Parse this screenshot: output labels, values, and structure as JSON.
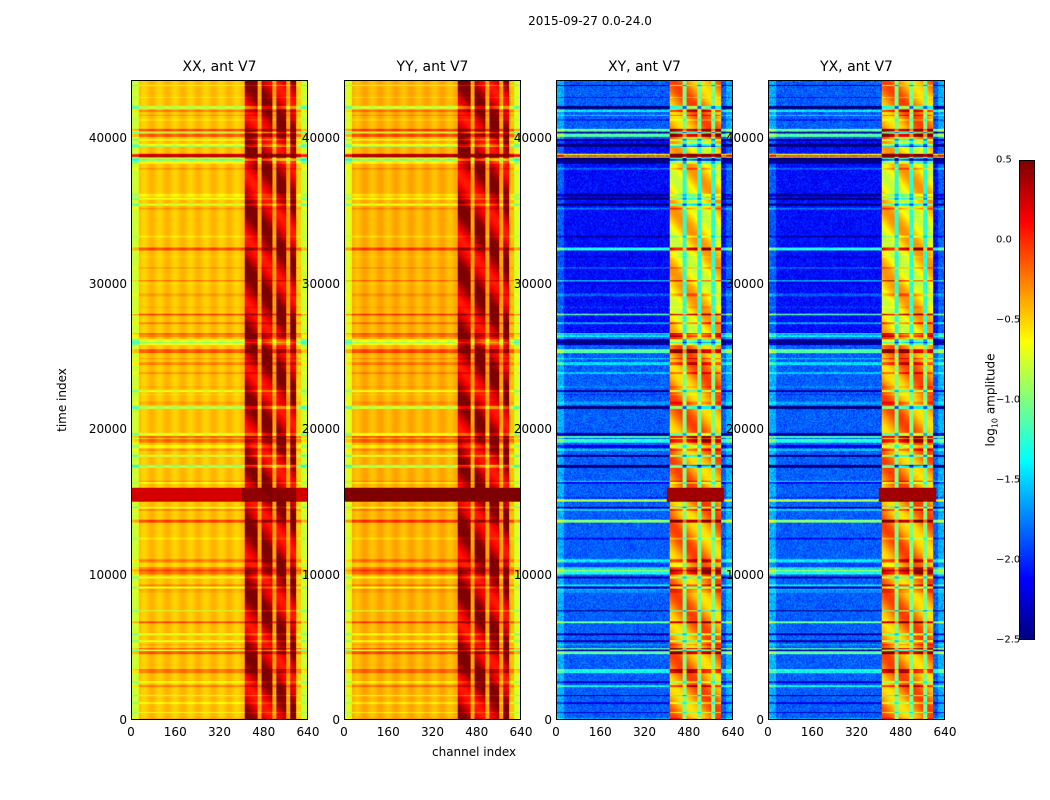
{
  "suptitle": "2015-09-27 0.0-24.0",
  "chart_data": {
    "type": "heatmap",
    "xlabel": "channel index",
    "ylabel": "time index",
    "xlim": [
      0,
      640
    ],
    "ylim": [
      0,
      44000
    ],
    "xticks": [
      "0",
      "160",
      "320",
      "480",
      "640"
    ],
    "yticks": [
      "0",
      "10000",
      "20000",
      "30000",
      "40000"
    ],
    "panels": [
      {
        "title": "XX, ant V7",
        "base": -0.45,
        "edge_base": -0.8,
        "active_band_level": 0.3,
        "flare_rows": [
          15000,
          16000
        ],
        "flare_level": 0.45,
        "flare_full_width": false
      },
      {
        "title": "YY, ant V7",
        "base": -0.4,
        "edge_base": -0.75,
        "active_band_level": 0.3,
        "flare_rows": [
          15000,
          16000
        ],
        "flare_level": 0.5,
        "flare_full_width": true
      },
      {
        "title": "XY, ant V7",
        "base": -1.85,
        "edge_base": -1.6,
        "active_band_level": -0.3,
        "flare_rows": [
          15000,
          16000
        ],
        "flare_level": 0.4,
        "flare_full_width": false
      },
      {
        "title": "YX, ant V7",
        "base": -1.85,
        "edge_base": -1.6,
        "active_band_level": -0.3,
        "flare_rows": [
          15000,
          16000
        ],
        "flare_level": 0.4,
        "flare_full_width": false
      }
    ],
    "active_channels": [
      410,
      600
    ],
    "gap_channels": [
      465,
      520,
      570
    ],
    "colorbar": {
      "label": "log10 amplitude",
      "label_main": "log",
      "label_sub": "10",
      "label_rest": " amplitude",
      "range": [
        -2.5,
        0.5
      ],
      "ticks": [
        "0.5",
        "0.0",
        "−0.5",
        "−1.0",
        "−1.5",
        "−2.0",
        "−2.5"
      ],
      "colormap": "jet"
    }
  }
}
